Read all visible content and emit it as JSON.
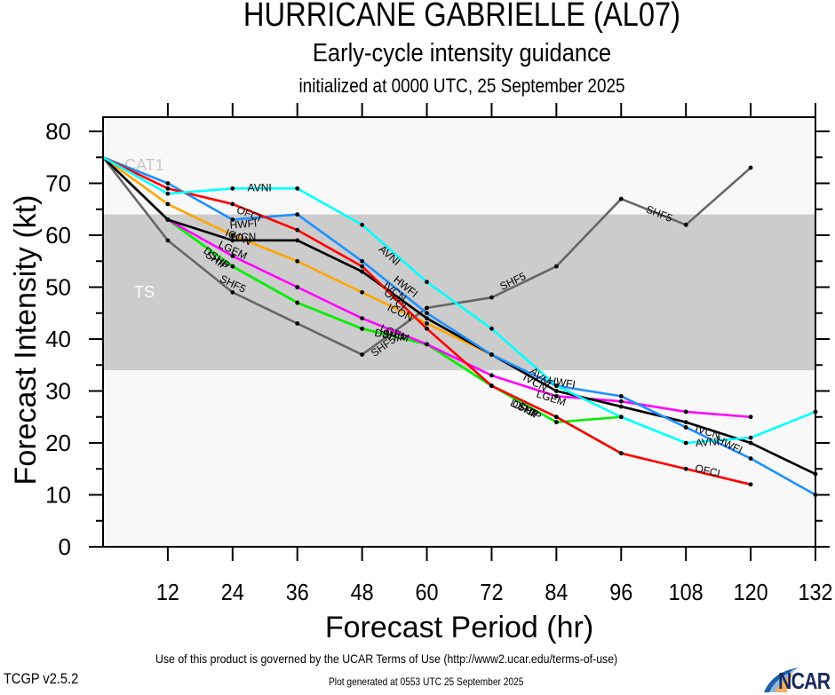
{
  "header": {
    "title": "HURRICANE GABRIELLE (AL07)",
    "subtitle": "Early-cycle intensity guidance",
    "init_line": "initialized at 0000 UTC, 25 September 2025"
  },
  "footer": {
    "terms": "Use of this product is governed by the UCAR Terms of Use (http://www2.ucar.edu/terms-of-use)",
    "generated": "Plot generated at 0553 UTC   25 September 2025",
    "version": "TCGP v2.5.2",
    "logo_text": "NCAR"
  },
  "chart_data": {
    "type": "line",
    "title": "HURRICANE GABRIELLE (AL07)",
    "xlabel": "Forecast Period (hr)",
    "ylabel": "Forecast Intensity (kt)",
    "xlim": [
      0,
      132
    ],
    "ylim": [
      0,
      80
    ],
    "x_ticks": [
      12,
      24,
      36,
      48,
      60,
      72,
      84,
      96,
      108,
      120,
      132
    ],
    "y_ticks": [
      0,
      10,
      20,
      30,
      40,
      50,
      60,
      70,
      80
    ],
    "y_minor_step": 5,
    "grid": false,
    "legend": "none (inline series labels)",
    "bands": [
      {
        "label": "TS",
        "from": 34,
        "to": 64,
        "color": "#cccccc"
      },
      {
        "label": "CAT1",
        "from": 64,
        "to": 83,
        "color": "#f8f8f8"
      }
    ],
    "plot_background": "#f8f8f8",
    "series": [
      {
        "name": "SHF5",
        "color": "#666666",
        "x": [
          0,
          12,
          24,
          36,
          48,
          60,
          72,
          84,
          96,
          108,
          120
        ],
        "values": [
          75,
          59,
          49,
          43,
          37,
          46,
          48,
          54,
          67,
          62,
          73
        ],
        "label_at": [
          [
            24,
            50.5
          ],
          [
            52,
            38.5
          ],
          [
            76,
            51
          ],
          [
            103,
            64
          ]
        ]
      },
      {
        "name": "SHIP",
        "color": "#00ee00",
        "x": [
          0,
          12,
          24,
          36,
          48,
          60,
          72,
          84,
          96
        ],
        "values": [
          75,
          63,
          54,
          47,
          42,
          39,
          31,
          24,
          25
        ],
        "label_at": [
          [
            21,
            55
          ],
          [
            54,
            40.5
          ],
          [
            79,
            26
          ]
        ]
      },
      {
        "name": "DSHP",
        "color": "#00ee00",
        "x": [
          0,
          12,
          24,
          36,
          48,
          60,
          72,
          84,
          96
        ],
        "values": [
          75,
          63,
          54,
          47,
          42,
          39,
          31,
          25,
          18
        ],
        "label_at": [
          [
            21,
            55.5
          ],
          [
            53,
            40.5
          ],
          [
            78,
            26.5
          ]
        ]
      },
      {
        "name": "LGEM",
        "color": "#ff00ff",
        "x": [
          0,
          12,
          24,
          36,
          48,
          60,
          72,
          84,
          96,
          108,
          120
        ],
        "values": [
          75,
          63,
          56,
          50,
          44,
          39,
          33,
          29,
          28,
          26,
          25
        ],
        "label_at": [
          [
            24,
            57
          ],
          [
            54,
            41
          ],
          [
            83,
            28.5
          ]
        ]
      },
      {
        "name": "ICON",
        "color": "#ffa500",
        "x": [
          0,
          12,
          24,
          36,
          48,
          60,
          72
        ],
        "values": [
          75,
          66,
          60,
          55,
          49,
          43,
          37
        ],
        "label_at": [
          [
            25,
            59.5
          ],
          [
            55,
            45
          ]
        ]
      },
      {
        "name": "IVCN",
        "color": "#000000",
        "x": [
          0,
          12,
          24,
          36,
          48,
          60,
          72,
          84,
          96,
          108,
          120,
          132
        ],
        "values": [
          75,
          63,
          59,
          59,
          53,
          44,
          37,
          30,
          27,
          24,
          20,
          14
        ],
        "label_at": [
          [
            26,
            59.5
          ],
          [
            54,
            49
          ],
          [
            80,
            31.5
          ],
          [
            112,
            22
          ]
        ]
      },
      {
        "name": "HWFI",
        "color": "#1e90ff",
        "x": [
          0,
          12,
          24,
          36,
          48,
          60,
          72,
          84,
          96,
          108,
          120,
          132
        ],
        "values": [
          75,
          70,
          63,
          64,
          55,
          45,
          37,
          31,
          29,
          23,
          17,
          10
        ],
        "label_at": [
          [
            26,
            62
          ],
          [
            56,
            50
          ],
          [
            85,
            31.5
          ],
          [
            116,
            19.5
          ]
        ]
      },
      {
        "name": "OFCI",
        "color": "#ff0000",
        "x": [
          0,
          12,
          24,
          36,
          48,
          60,
          72,
          84,
          96,
          108,
          120
        ],
        "values": [
          75,
          69,
          66,
          61,
          54,
          42,
          31,
          25,
          18,
          15,
          12
        ],
        "label_at": [
          [
            27,
            64
          ],
          [
            54,
            47.5
          ],
          [
            78,
            26.5
          ],
          [
            112,
            14.5
          ]
        ]
      },
      {
        "name": "AVNI",
        "color": "#00ffff",
        "x": [
          0,
          12,
          24,
          36,
          48,
          60,
          72,
          84,
          96,
          108,
          120,
          132
        ],
        "values": [
          75,
          68,
          69,
          69,
          62,
          51,
          42,
          31,
          25,
          20,
          21,
          26
        ],
        "label_at": [
          [
            29,
            69
          ],
          [
            53,
            56
          ],
          [
            81,
            32.5
          ],
          [
            112,
            20
          ]
        ]
      }
    ]
  }
}
